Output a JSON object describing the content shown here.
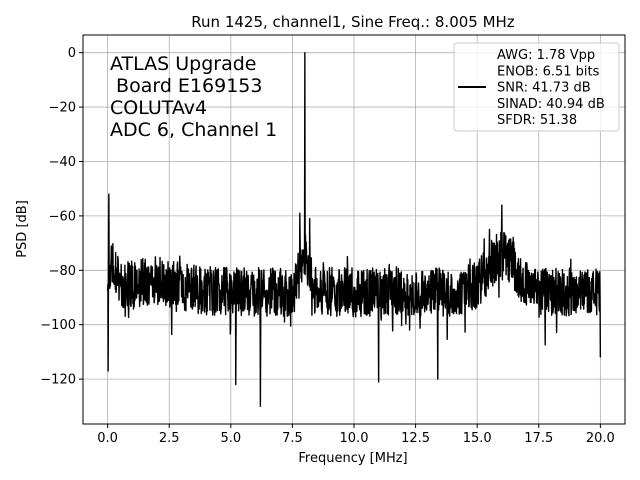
{
  "chart_data": {
    "type": "line",
    "title": "Run 1425, channel1, Sine Freq.: 8.005 MHz",
    "xlabel": "Frequency [MHz]",
    "ylabel": "PSD [dB]",
    "xlim": [
      -1.0,
      21.0
    ],
    "ylim": [
      -136.5,
      6.5
    ],
    "xticks": [
      0.0,
      2.5,
      5.0,
      7.5,
      10.0,
      12.5,
      15.0,
      17.5,
      20.0
    ],
    "xtick_labels": [
      "0.0",
      "2.5",
      "5.0",
      "7.5",
      "10.0",
      "12.5",
      "15.0",
      "17.5",
      "20.0"
    ],
    "yticks": [
      0,
      -20,
      -40,
      -60,
      -80,
      -100,
      -120
    ],
    "ytick_labels": [
      "0",
      "−20",
      "−40",
      "−60",
      "−80",
      "−100",
      "−120"
    ],
    "grid": true,
    "legend_position": "top-right",
    "annotation_lines": [
      "ATLAS Upgrade",
      " Board E169153",
      "COLUTAv4",
      "ADC 6, Channel 1"
    ],
    "series": [
      {
        "legend_lines": [
          "AWG: 1.78 Vpp",
          "ENOB: 6.51 bits",
          "SNR: 41.73 dB",
          "SINAD: 40.94 dB",
          "SFDR: 51.38"
        ],
        "color": "#000000",
        "noise_floor_db": -88,
        "noise_halfwidth_db": 9,
        "x_range": [
          0.0,
          20.0
        ],
        "peaks": [
          {
            "x": 0.05,
            "y": -52
          },
          {
            "x": 8.005,
            "y": 0
          },
          {
            "x": 7.8,
            "y": -59
          },
          {
            "x": 8.2,
            "y": -61
          },
          {
            "x": 16.0,
            "y": -56
          },
          {
            "x": 15.5,
            "y": -65
          }
        ],
        "dips": [
          {
            "x": 0.02,
            "y": -117
          },
          {
            "x": 5.2,
            "y": -122
          },
          {
            "x": 6.2,
            "y": -130
          },
          {
            "x": 11.0,
            "y": -121
          },
          {
            "x": 13.4,
            "y": -120
          },
          {
            "x": 20.0,
            "y": -112
          }
        ]
      }
    ]
  }
}
